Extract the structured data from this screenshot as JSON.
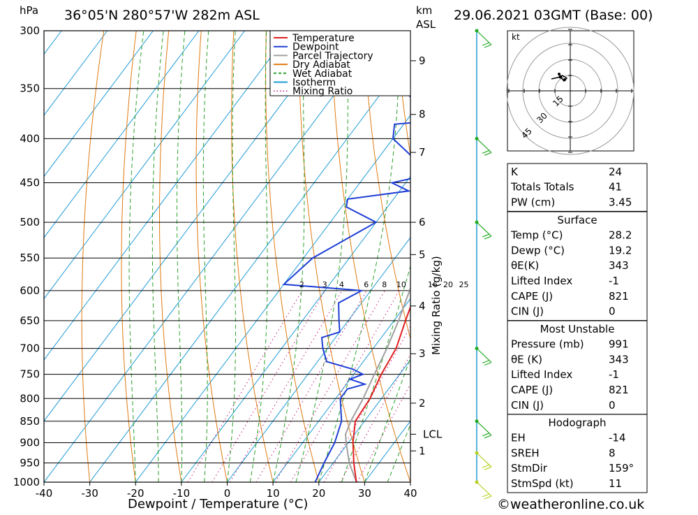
{
  "header": {
    "hpa_label": "hPa",
    "location": "36°05'N  280°57'W  282m  ASL",
    "km_label": "km",
    "asl_label": "ASL",
    "datetime": "29.06.2021  03GMT  (Base: 00)"
  },
  "legend": {
    "items": [
      {
        "label": "Temperature",
        "color": "#e02020",
        "style": "solid"
      },
      {
        "label": "Dewpoint",
        "color": "#1f3fd6",
        "style": "solid"
      },
      {
        "label": "Parcel Trajectory",
        "color": "#a0a0a0",
        "style": "solid"
      },
      {
        "label": "Dry Adiabat",
        "color": "#e07a10",
        "style": "solid"
      },
      {
        "label": "Wet Adiabat",
        "color": "#2aa02a",
        "style": "dashed"
      },
      {
        "label": "Isotherm",
        "color": "#1e9bd6",
        "style": "solid"
      },
      {
        "label": "Mixing Ratio",
        "color": "#c0107a",
        "style": "dotted"
      }
    ]
  },
  "chart_data": {
    "type": "line",
    "xlabel": "Dewpoint / Temperature (°C)",
    "ylabel": "hPa",
    "xlim": [
      -40,
      40
    ],
    "x_ticks": [
      -40,
      -30,
      -20,
      -10,
      0,
      10,
      20,
      30,
      40
    ],
    "pressure_ticks": [
      300,
      350,
      400,
      450,
      500,
      550,
      600,
      650,
      700,
      750,
      800,
      850,
      900,
      950,
      1000
    ],
    "height_axis": {
      "label": "km ASL",
      "ticks": [
        {
          "label": "1",
          "p": 920
        },
        {
          "label": "2",
          "p": 810
        },
        {
          "label": "3",
          "p": 710
        },
        {
          "label": "4",
          "p": 625
        },
        {
          "label": "5",
          "p": 545
        },
        {
          "label": "6",
          "p": 500
        },
        {
          "label": "7",
          "p": 415
        },
        {
          "label": "8",
          "p": 375
        },
        {
          "label": "9",
          "p": 325
        }
      ],
      "lcl": {
        "label": "LCL",
        "p": 880
      }
    },
    "mixing_ratio_label": "Mixing Ratio (g/kg)",
    "mixing_ratio_values": [
      "2",
      "3",
      "4",
      "6",
      "8",
      "10",
      "16",
      "20",
      "25"
    ],
    "series": [
      {
        "name": "Temperature",
        "color": "#e02020",
        "points": [
          [
            1000,
            28.2
          ],
          [
            950,
            24.5
          ],
          [
            900,
            21.0
          ],
          [
            850,
            18.0
          ],
          [
            800,
            17.5
          ],
          [
            750,
            16.0
          ],
          [
            700,
            15.0
          ],
          [
            650,
            12.5
          ],
          [
            600,
            10.0
          ],
          [
            550,
            9.0
          ],
          [
            500,
            7.0
          ],
          [
            450,
            4.5
          ],
          [
            400,
            1.5
          ],
          [
            375,
            -1.5
          ],
          [
            350,
            -5.0
          ],
          [
            325,
            -9.0
          ],
          [
            310,
            -11.5
          ],
          [
            300,
            -12.0
          ]
        ]
      },
      {
        "name": "Dewpoint",
        "color": "#1f3fd6",
        "points": [
          [
            1000,
            19.2
          ],
          [
            950,
            18.0
          ],
          [
            900,
            17.0
          ],
          [
            850,
            15.0
          ],
          [
            800,
            11.0
          ],
          [
            780,
            11.0
          ],
          [
            770,
            14.0
          ],
          [
            760,
            10.0
          ],
          [
            750,
            12.0
          ],
          [
            740,
            9.0
          ],
          [
            725,
            2.0
          ],
          [
            700,
            -1.0
          ],
          [
            680,
            -3.0
          ],
          [
            670,
            0.0
          ],
          [
            650,
            -2.0
          ],
          [
            620,
            -5.0
          ],
          [
            600,
            -2.0
          ],
          [
            590,
            -20.0
          ],
          [
            550,
            -18.0
          ],
          [
            500,
            -10.0
          ],
          [
            480,
            -19.0
          ],
          [
            470,
            -20.0
          ],
          [
            460,
            -8.0
          ],
          [
            450,
            -13.0
          ],
          [
            440,
            -6.0
          ],
          [
            425,
            -11.0
          ],
          [
            400,
            -20.0
          ],
          [
            385,
            -22.0
          ],
          [
            380,
            -10.0
          ],
          [
            370,
            -19.0
          ],
          [
            355,
            -24.0
          ],
          [
            340,
            -24.0
          ],
          [
            320,
            -20.0
          ],
          [
            305,
            -17.0
          ],
          [
            300,
            -17.5
          ]
        ]
      },
      {
        "name": "Parcel Trajectory",
        "color": "#a0a0a0",
        "points": [
          [
            1000,
            28.2
          ],
          [
            950,
            23.5
          ],
          [
            900,
            19.5
          ],
          [
            880,
            18.0
          ],
          [
            850,
            17.0
          ],
          [
            800,
            16.0
          ],
          [
            750,
            14.5
          ],
          [
            700,
            13.0
          ],
          [
            650,
            11.0
          ],
          [
            600,
            8.5
          ],
          [
            550,
            6.0
          ],
          [
            500,
            3.0
          ],
          [
            450,
            0.0
          ],
          [
            400,
            -4.0
          ],
          [
            360,
            -7.5
          ]
        ]
      }
    ]
  },
  "hodograph": {
    "unit_label": "kt",
    "ring_labels": [
      "15",
      "30",
      "45"
    ]
  },
  "stats": {
    "k": {
      "label": "K",
      "value": "24"
    },
    "totals": {
      "label": "Totals Totals",
      "value": "41"
    },
    "pw": {
      "label": "PW (cm)",
      "value": "3.45"
    },
    "surface": {
      "title": "Surface",
      "temp": {
        "label": "Temp (°C)",
        "value": "28.2"
      },
      "dewp": {
        "label": "Dewp (°C)",
        "value": "19.2"
      },
      "theta": {
        "label": "θE(K)",
        "value": "343"
      },
      "lifted": {
        "label": "Lifted Index",
        "value": "-1"
      },
      "cape": {
        "label": "CAPE (J)",
        "value": "821"
      },
      "cin": {
        "label": "CIN (J)",
        "value": "0"
      }
    },
    "unstable": {
      "title": "Most Unstable",
      "pressure": {
        "label": "Pressure (mb)",
        "value": "991"
      },
      "theta": {
        "label": "θE (K)",
        "value": "343"
      },
      "lifted": {
        "label": "Lifted Index",
        "value": "-1"
      },
      "cape": {
        "label": "CAPE (J)",
        "value": "821"
      },
      "cin": {
        "label": "CIN (J)",
        "value": "0"
      }
    },
    "hodo": {
      "title": "Hodograph",
      "eh": {
        "label": "EH",
        "value": "-14"
      },
      "sreh": {
        "label": "SREH",
        "value": "8"
      },
      "stmdir": {
        "label": "StmDir",
        "value": "159°"
      },
      "stmspd": {
        "label": "StmSpd (kt)",
        "value": "11"
      }
    }
  },
  "footer": {
    "copyright": "©weatheronline.co.uk"
  }
}
